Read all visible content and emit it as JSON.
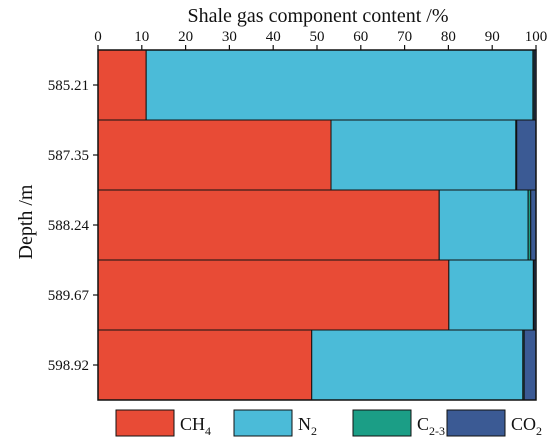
{
  "chart_data": {
    "type": "bar",
    "orientation": "horizontal",
    "stacked": true,
    "title": "Shale gas component content /%",
    "xlabel": "Shale gas component content /%",
    "ylabel": "Depth /m",
    "xlim": [
      0,
      100
    ],
    "x_ticks": [
      0,
      10,
      20,
      30,
      40,
      50,
      60,
      70,
      80,
      90,
      100
    ],
    "x_axis_position": "top",
    "grid": false,
    "legend_position": "bottom",
    "categories": [
      "585.21",
      "587.35",
      "588.24",
      "589.67",
      "598.92"
    ],
    "series": [
      {
        "name": "CH4",
        "name_main": "CH",
        "name_sub": "4",
        "color": "#E84B36",
        "values": [
          11.0,
          53.2,
          77.9,
          80.1,
          48.8
        ]
      },
      {
        "name": "N2",
        "name_main": "N",
        "name_sub": "2",
        "color": "#4BBBD8",
        "values": [
          88.3,
          42.2,
          20.3,
          19.3,
          48.2
        ]
      },
      {
        "name": "C2-3",
        "name_main": "C",
        "name_sub": "2-3",
        "color": "#1B9E86",
        "values": [
          0.3,
          0.2,
          0.6,
          0.2,
          0.3
        ]
      },
      {
        "name": "CO2",
        "name_main": "CO",
        "name_sub": "2",
        "color": "#3B5A94",
        "values": [
          0.4,
          4.4,
          1.2,
          0.4,
          2.7
        ]
      }
    ]
  }
}
